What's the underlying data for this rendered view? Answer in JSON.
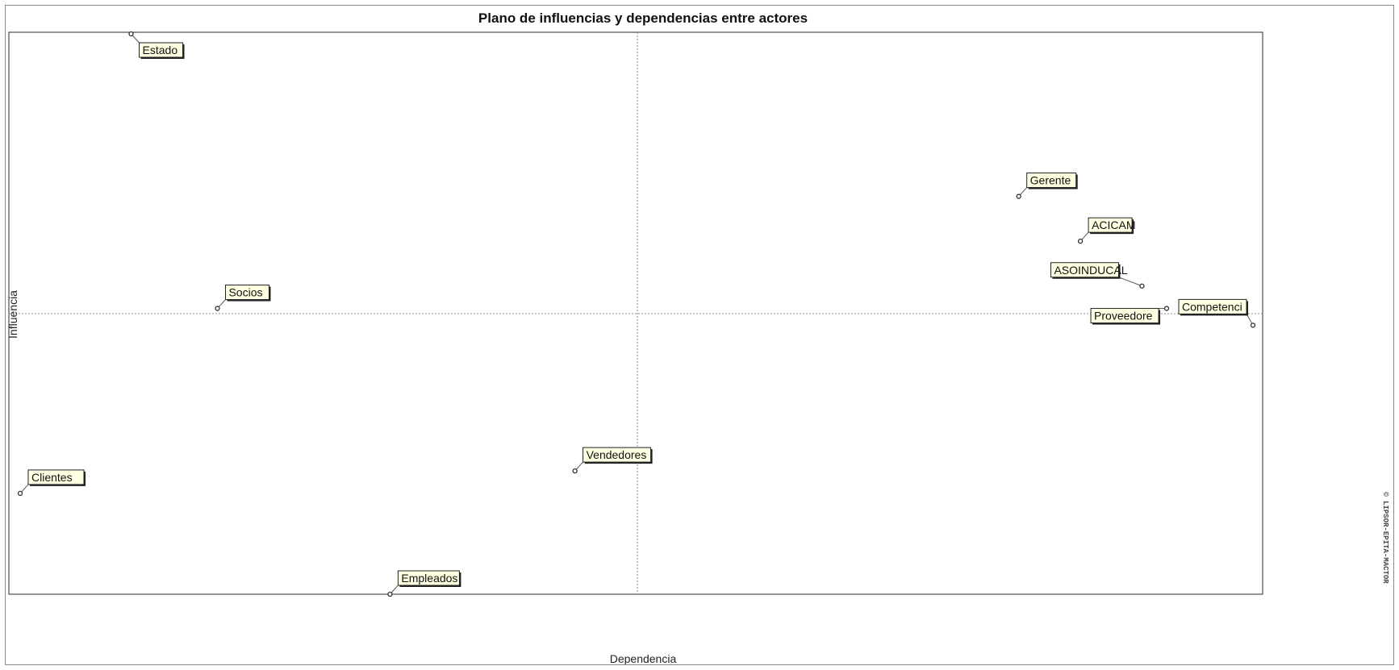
{
  "window": {
    "background": "#ffffff"
  },
  "chart_data": {
    "type": "scatter",
    "title": "Plano de influencias y dependencias entre actores",
    "xlabel": "Dependencia",
    "ylabel": "Influencia",
    "watermark": "© LIPSOR-EPITA-MACTOR",
    "grid": false,
    "crosshair": true,
    "label_background": "#ffffe1",
    "point_color": "#333333",
    "points": [
      {
        "name": "Estado",
        "x": 0.09,
        "y": 1.0
      },
      {
        "name": "Gerente",
        "x": 0.81,
        "y": 0.71
      },
      {
        "name": "ACICAM",
        "x": 0.86,
        "y": 0.63
      },
      {
        "name": "ASOINDUCAL",
        "x": 0.91,
        "y": 0.55
      },
      {
        "name": "Socios",
        "x": 0.16,
        "y": 0.51
      },
      {
        "name": "Proveedore",
        "x": 0.93,
        "y": 0.51
      },
      {
        "name": "Competenci",
        "x": 1.0,
        "y": 0.48
      },
      {
        "name": "Vendedores",
        "x": 0.45,
        "y": 0.22
      },
      {
        "name": "Clientes",
        "x": 0.0,
        "y": 0.18
      },
      {
        "name": "Empleados",
        "x": 0.3,
        "y": 0.0
      }
    ]
  }
}
